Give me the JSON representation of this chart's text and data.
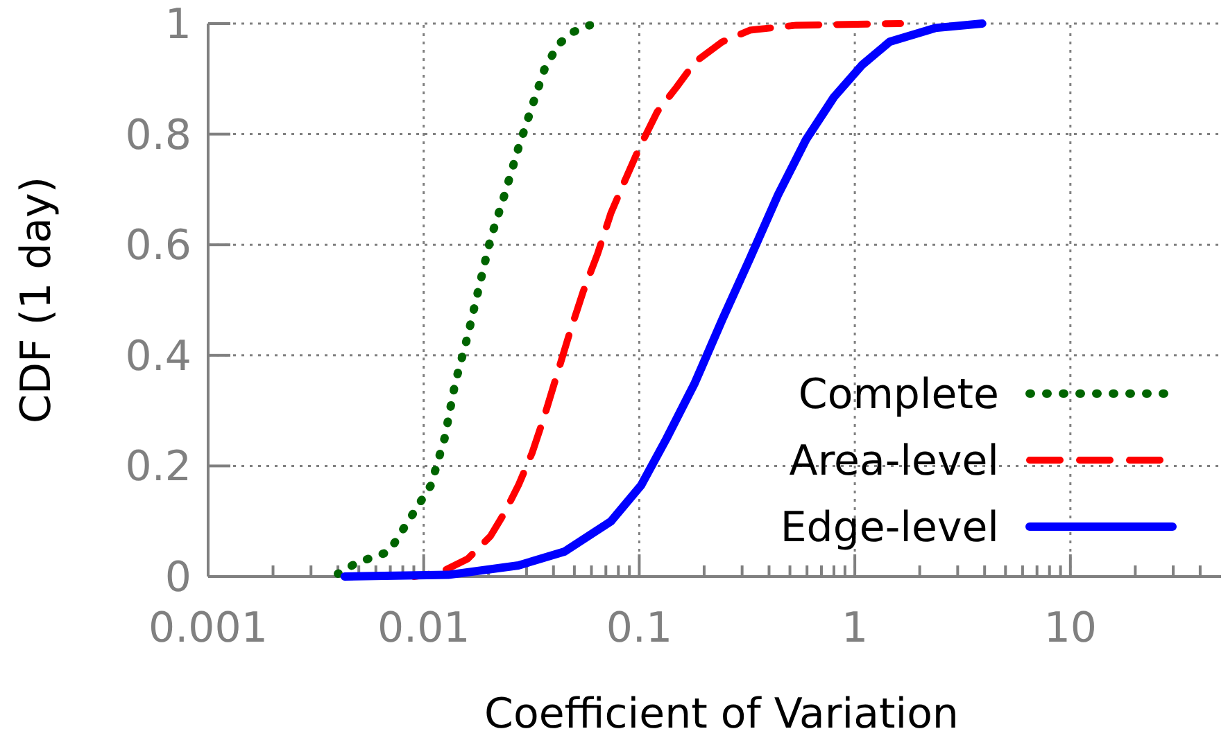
{
  "chart_data": {
    "type": "line",
    "xlabel": "Coefficient of Variation",
    "ylabel": "CDF (1 day)",
    "log": "x",
    "grid": true,
    "legend": "bottom right",
    "xlim": [
      0.001,
      50
    ],
    "ylim": [
      0,
      1
    ],
    "xticks": [
      0.001,
      {
        "value": 0.002,
        "label": null
      },
      {
        "value": 0.003,
        "label": null
      },
      {
        "value": 0.004,
        "label": null
      },
      {
        "value": 0.005,
        "label": null
      },
      {
        "value": 0.006,
        "label": null
      },
      {
        "value": 0.007,
        "label": null
      },
      {
        "value": 0.008,
        "label": null
      },
      {
        "value": 0.009,
        "label": null
      },
      0.01,
      {
        "value": 0.02,
        "label": null
      },
      {
        "value": 0.03,
        "label": null
      },
      {
        "value": 0.04,
        "label": null
      },
      {
        "value": 0.05,
        "label": null
      },
      {
        "value": 0.06,
        "label": null
      },
      {
        "value": 0.07,
        "label": null
      },
      {
        "value": 0.08,
        "label": null
      },
      {
        "value": 0.09,
        "label": null
      },
      0.1,
      {
        "value": 0.2,
        "label": null
      },
      {
        "value": 0.3,
        "label": null
      },
      {
        "value": 0.4,
        "label": null
      },
      {
        "value": 0.5,
        "label": null
      },
      {
        "value": 0.6,
        "label": null
      },
      {
        "value": 0.7,
        "label": null
      },
      {
        "value": 0.8,
        "label": null
      },
      {
        "value": 0.9,
        "label": null
      },
      1,
      {
        "value": 2,
        "label": null
      },
      {
        "value": 3,
        "label": null
      },
      {
        "value": 4,
        "label": null
      },
      {
        "value": 5,
        "label": null
      },
      {
        "value": 6,
        "label": null
      },
      {
        "value": 7,
        "label": null
      },
      {
        "value": 8,
        "label": null
      },
      {
        "value": 9,
        "label": null
      },
      10,
      {
        "value": 20,
        "label": null
      },
      {
        "value": 30,
        "label": null
      },
      {
        "value": 40,
        "label": null
      }
    ],
    "yticks": [
      0,
      0.2,
      0.4,
      0.6,
      0.8,
      1
    ],
    "series": [
      {
        "name": "Complete",
        "color": "#006400",
        "line_style": "dotted",
        "x": [
          0.004,
          0.0049,
          0.0069,
          0.0088,
          0.0108,
          0.0125,
          0.014,
          0.016,
          0.0181,
          0.0204,
          0.0237,
          0.0275,
          0.0318,
          0.0363,
          0.042,
          0.0495,
          0.059
        ],
        "values": [
          0.005,
          0.025,
          0.045,
          0.11,
          0.165,
          0.25,
          0.35,
          0.435,
          0.525,
          0.61,
          0.69,
          0.775,
          0.85,
          0.917,
          0.962,
          0.985,
          0.997
        ]
      },
      {
        "name": "Area-level",
        "color": "#ff0000",
        "line_style": "dashed",
        "x": [
          0.009,
          0.0119,
          0.016,
          0.0204,
          0.0237,
          0.0275,
          0.0318,
          0.0363,
          0.041,
          0.0475,
          0.055,
          0.064,
          0.074,
          0.086,
          0.1,
          0.121,
          0.149,
          0.181,
          0.243,
          0.326,
          0.535,
          1.63
        ],
        "values": [
          0,
          0.007,
          0.032,
          0.073,
          0.115,
          0.165,
          0.223,
          0.29,
          0.358,
          0.44,
          0.516,
          0.583,
          0.658,
          0.717,
          0.775,
          0.84,
          0.885,
          0.93,
          0.967,
          0.988,
          0.997,
          1
        ]
      },
      {
        "name": "Edge-level",
        "color": "#0000ff",
        "line_style": "solid",
        "x": [
          0.0043,
          0.013,
          0.0275,
          0.045,
          0.074,
          0.102,
          0.134,
          0.181,
          0.243,
          0.326,
          0.44,
          0.594,
          0.8,
          1.08,
          1.45,
          2.36,
          3.9
        ],
        "values": [
          0,
          0.003,
          0.02,
          0.045,
          0.1,
          0.165,
          0.25,
          0.35,
          0.465,
          0.575,
          0.69,
          0.79,
          0.867,
          0.925,
          0.967,
          0.992,
          1
        ]
      }
    ]
  }
}
